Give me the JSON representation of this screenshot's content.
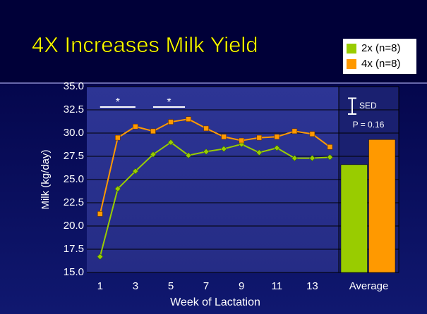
{
  "chart_data": {
    "type": "line",
    "title": "4X Increases Milk Yield",
    "x_label": "Week of Lactation",
    "y_label": "Milk (kg/day)",
    "x": [
      1,
      2,
      3,
      4,
      5,
      6,
      7,
      8,
      9,
      10,
      11,
      12,
      13,
      14
    ],
    "xlim": [
      0.25,
      14.5
    ],
    "xticks": [
      1,
      3,
      5,
      7,
      9,
      11,
      13
    ],
    "ylim": [
      15,
      35
    ],
    "yticks": [
      {
        "value": 15,
        "label": "15.0"
      },
      {
        "value": 17.5,
        "label": "17.5"
      },
      {
        "value": 20,
        "label": "20.0"
      },
      {
        "value": 22.5,
        "label": "22.5"
      },
      {
        "value": 25,
        "label": "25.0"
      },
      {
        "value": 27.5,
        "label": "27.5"
      },
      {
        "value": 30,
        "label": "30.0"
      },
      {
        "value": 32.5,
        "label": "32.5"
      },
      {
        "value": 35,
        "label": "35.0"
      }
    ],
    "grid": true,
    "average_label": "Average",
    "series": [
      {
        "name": "2x (n=8)",
        "color": "#99cc00",
        "marker": "diamond",
        "values": [
          16.7,
          24.0,
          25.9,
          27.7,
          29.0,
          27.6,
          28.0,
          28.3,
          28.8,
          27.9,
          28.4,
          27.3,
          27.3,
          27.4
        ],
        "average": 26.6
      },
      {
        "name": "4x (n=8)",
        "color": "#ff9900",
        "marker": "square",
        "values": [
          21.3,
          29.5,
          30.7,
          30.2,
          31.2,
          31.5,
          30.5,
          29.6,
          29.2,
          29.5,
          29.6,
          30.2,
          29.9,
          28.5
        ],
        "average": 29.3
      }
    ],
    "significance": [
      {
        "label": "*",
        "x": [
          1,
          3
        ]
      },
      {
        "label": "*",
        "x": [
          4,
          5.8
        ]
      }
    ],
    "sed": {
      "label": "SED",
      "value": 1.7,
      "p_label": "P = 0.16"
    }
  }
}
